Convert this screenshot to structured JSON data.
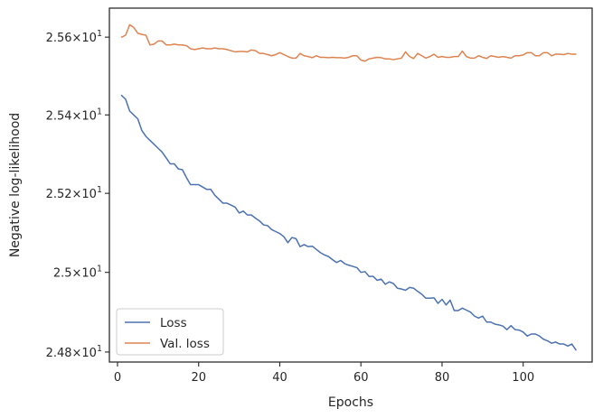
{
  "chart_data": {
    "type": "line",
    "title": "",
    "xlabel": "Epochs",
    "ylabel": "Negative log-likelihood",
    "xlim": [
      -2,
      117
    ],
    "ylim": [
      24.775,
      25.675
    ],
    "y_scale": "log",
    "grid": false,
    "legend_placement": "bottom-left",
    "x_ticks": [
      0,
      20,
      40,
      60,
      80,
      100
    ],
    "x_tick_labels": [
      "0",
      "20",
      "40",
      "60",
      "80",
      "100"
    ],
    "y_ticks": [
      24.8,
      25.0,
      25.2,
      25.4,
      25.6
    ],
    "y_tick_labels": [
      {
        "mantissa": "2.48",
        "base": "10",
        "exponent": "1"
      },
      {
        "mantissa": "2.5",
        "base": "10",
        "exponent": "1"
      },
      {
        "mantissa": "2.52",
        "base": "10",
        "exponent": "1"
      },
      {
        "mantissa": "2.54",
        "base": "10",
        "exponent": "1"
      },
      {
        "mantissa": "2.56",
        "base": "10",
        "exponent": "1"
      }
    ],
    "times_symbol": "×",
    "series": [
      {
        "name": "Loss",
        "color": "#4c72b0",
        "x": [
          1,
          2,
          3,
          4,
          5,
          6,
          7,
          8,
          9,
          10,
          11,
          12,
          13,
          14,
          15,
          16,
          17,
          18,
          19,
          20,
          21,
          22,
          23,
          24,
          25,
          26,
          27,
          28,
          29,
          30,
          31,
          32,
          33,
          34,
          35,
          36,
          37,
          38,
          39,
          40,
          41,
          42,
          43,
          44,
          45,
          46,
          47,
          48,
          49,
          50,
          51,
          52,
          53,
          54,
          55,
          56,
          57,
          58,
          59,
          60,
          61,
          62,
          63,
          64,
          65,
          66,
          67,
          68,
          69,
          70,
          71,
          72,
          73,
          74,
          75,
          76,
          77,
          78,
          79,
          80,
          81,
          82,
          83,
          84,
          85,
          86,
          87,
          88,
          89,
          90,
          91,
          92,
          93,
          94,
          95,
          96,
          97,
          98,
          99,
          100,
          101,
          102,
          103,
          104,
          105,
          106,
          107,
          108,
          109,
          110,
          111,
          112,
          113
        ],
        "values": [
          25.45,
          25.44,
          25.41,
          25.4,
          25.39,
          25.36,
          25.345,
          25.335,
          25.325,
          25.315,
          25.305,
          25.29,
          25.275,
          25.275,
          25.262,
          25.26,
          25.24,
          25.222,
          25.222,
          25.222,
          25.216,
          25.21,
          25.21,
          25.195,
          25.185,
          25.175,
          25.175,
          25.17,
          25.165,
          25.15,
          25.155,
          25.145,
          25.145,
          25.137,
          25.13,
          25.12,
          25.118,
          25.108,
          25.103,
          25.098,
          25.09,
          25.075,
          25.088,
          25.085,
          25.065,
          25.07,
          25.065,
          25.066,
          25.058,
          25.05,
          25.044,
          25.04,
          25.032,
          25.025,
          25.03,
          25.022,
          25.018,
          25.015,
          25.012,
          25.0,
          25.002,
          24.99,
          24.99,
          24.98,
          24.983,
          24.97,
          24.976,
          24.972,
          24.96,
          24.958,
          24.955,
          24.962,
          24.96,
          24.952,
          24.945,
          24.935,
          24.935,
          24.936,
          24.922,
          24.932,
          24.918,
          24.93,
          24.904,
          24.904,
          24.91,
          24.905,
          24.9,
          24.89,
          24.885,
          24.89,
          24.875,
          24.875,
          24.87,
          24.868,
          24.865,
          24.856,
          24.866,
          24.856,
          24.855,
          24.85,
          24.84,
          24.845,
          24.845,
          24.84,
          24.832,
          24.828,
          24.822,
          24.825,
          24.82,
          24.82,
          24.815,
          24.82,
          24.805
        ]
      },
      {
        "name": "Val. loss",
        "color": "#dd8452",
        "x": [
          1,
          2,
          3,
          4,
          5,
          6,
          7,
          8,
          9,
          10,
          11,
          12,
          13,
          14,
          15,
          16,
          17,
          18,
          19,
          20,
          21,
          22,
          23,
          24,
          25,
          26,
          27,
          28,
          29,
          30,
          31,
          32,
          33,
          34,
          35,
          36,
          37,
          38,
          39,
          40,
          41,
          42,
          43,
          44,
          45,
          46,
          47,
          48,
          49,
          50,
          51,
          52,
          53,
          54,
          55,
          56,
          57,
          58,
          59,
          60,
          61,
          62,
          63,
          64,
          65,
          66,
          67,
          68,
          69,
          70,
          71,
          72,
          73,
          74,
          75,
          76,
          77,
          78,
          79,
          80,
          81,
          82,
          83,
          84,
          85,
          86,
          87,
          88,
          89,
          90,
          91,
          92,
          93,
          94,
          95,
          96,
          97,
          98,
          99,
          100,
          101,
          102,
          103,
          104,
          105,
          106,
          107,
          108,
          109,
          110,
          111,
          112,
          113
        ],
        "values": [
          25.6,
          25.605,
          25.632,
          25.625,
          25.61,
          25.607,
          25.605,
          25.58,
          25.582,
          25.59,
          25.59,
          25.58,
          25.58,
          25.582,
          25.58,
          25.58,
          25.578,
          25.57,
          25.568,
          25.57,
          25.572,
          25.57,
          25.57,
          25.572,
          25.57,
          25.57,
          25.568,
          25.565,
          25.562,
          25.563,
          25.563,
          25.562,
          25.567,
          25.565,
          25.558,
          25.558,
          25.555,
          25.552,
          25.555,
          25.56,
          25.555,
          25.55,
          25.546,
          25.546,
          25.558,
          25.552,
          25.55,
          25.547,
          25.552,
          25.548,
          25.548,
          25.547,
          25.548,
          25.547,
          25.547,
          25.546,
          25.548,
          25.552,
          25.552,
          25.541,
          25.538,
          25.544,
          25.546,
          25.548,
          25.547,
          25.544,
          25.544,
          25.542,
          25.544,
          25.546,
          25.562,
          25.55,
          25.545,
          25.558,
          25.552,
          25.546,
          25.55,
          25.556,
          25.548,
          25.55,
          25.548,
          25.548,
          25.55,
          25.55,
          25.564,
          25.55,
          25.546,
          25.546,
          25.552,
          25.548,
          25.545,
          25.552,
          25.55,
          25.548,
          25.55,
          25.548,
          25.546,
          25.552,
          25.552,
          25.554,
          25.56,
          25.56,
          25.552,
          25.552,
          25.56,
          25.56,
          25.552,
          25.556,
          25.556,
          25.555,
          25.558,
          25.556,
          25.556
        ]
      }
    ]
  }
}
